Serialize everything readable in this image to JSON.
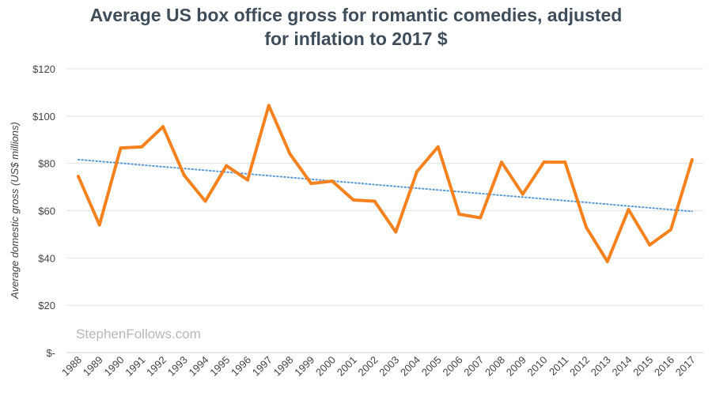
{
  "chart_data": {
    "type": "line",
    "title_line1": "Average US box office gross for romantic comedies, adjusted",
    "title_line2": "for inflation to 2017 $",
    "xlabel": "",
    "ylabel": "Average domestic gross (US$ millions)",
    "ylim": [
      0,
      120
    ],
    "yticks": [
      {
        "value": 0,
        "label": "$-"
      },
      {
        "value": 20,
        "label": "$20"
      },
      {
        "value": 40,
        "label": "$40"
      },
      {
        "value": 60,
        "label": "$60"
      },
      {
        "value": 80,
        "label": "$80"
      },
      {
        "value": 100,
        "label": "$100"
      },
      {
        "value": 120,
        "label": "$120"
      }
    ],
    "grid": true,
    "categories": [
      "1988",
      "1989",
      "1990",
      "1991",
      "1992",
      "1993",
      "1994",
      "1995",
      "1996",
      "1997",
      "1998",
      "1999",
      "2000",
      "2001",
      "2002",
      "2003",
      "2004",
      "2005",
      "2006",
      "2007",
      "2008",
      "2009",
      "2010",
      "2011",
      "2012",
      "2013",
      "2014",
      "2015",
      "2016",
      "2017"
    ],
    "series": [
      {
        "name": "Average domestic gross",
        "color": "#f5821f",
        "values": [
          74.5,
          54,
          86.5,
          87,
          95.5,
          75,
          64,
          79,
          73,
          104.5,
          84,
          71.5,
          72.5,
          64.5,
          64,
          51,
          76.5,
          87,
          58.5,
          57,
          80.5,
          67,
          80.5,
          80.5,
          53,
          38.5,
          60.5,
          45.5,
          52,
          81.5
        ]
      },
      {
        "name": "Linear trend",
        "style": "dotted",
        "color": "#5b9bd5",
        "values_at_ends": [
          81.6,
          59.7
        ]
      }
    ],
    "watermark": "StephenFollows.com"
  }
}
